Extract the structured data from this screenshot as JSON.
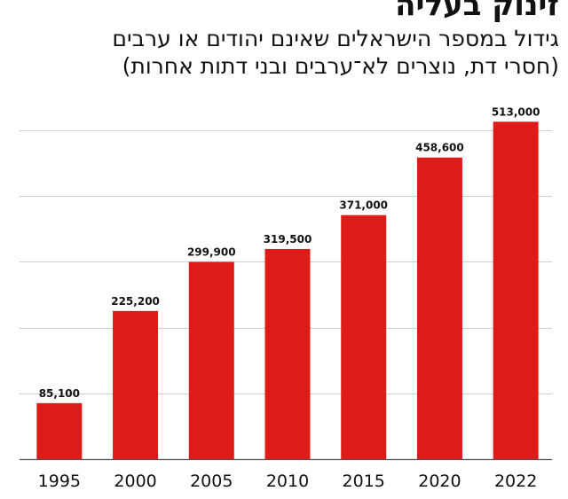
{
  "chart_data": {
    "type": "bar",
    "title": "זינוק בעליה",
    "subtitle_lines": [
      "גידול במספר הישראלים שאינם יהודים או ערבים",
      "(חסרי דת, נוצרים לא־ערבים ובני דתות אחרות)"
    ],
    "categories": [
      "1995",
      "2000",
      "2005",
      "2010",
      "2015",
      "2020",
      "2022"
    ],
    "values": [
      85100,
      225200,
      299900,
      319500,
      371000,
      458600,
      513000
    ],
    "value_labels": [
      "85,100",
      "225,200",
      "299,900",
      "319,500",
      "371,000",
      "458,600",
      "513,000"
    ],
    "ylim": [
      0,
      500000
    ],
    "gridlines_at": [
      100000,
      200000,
      300000,
      400000,
      500000
    ],
    "bar_color": "#dd1c1a",
    "xlabel": "",
    "ylabel": ""
  }
}
